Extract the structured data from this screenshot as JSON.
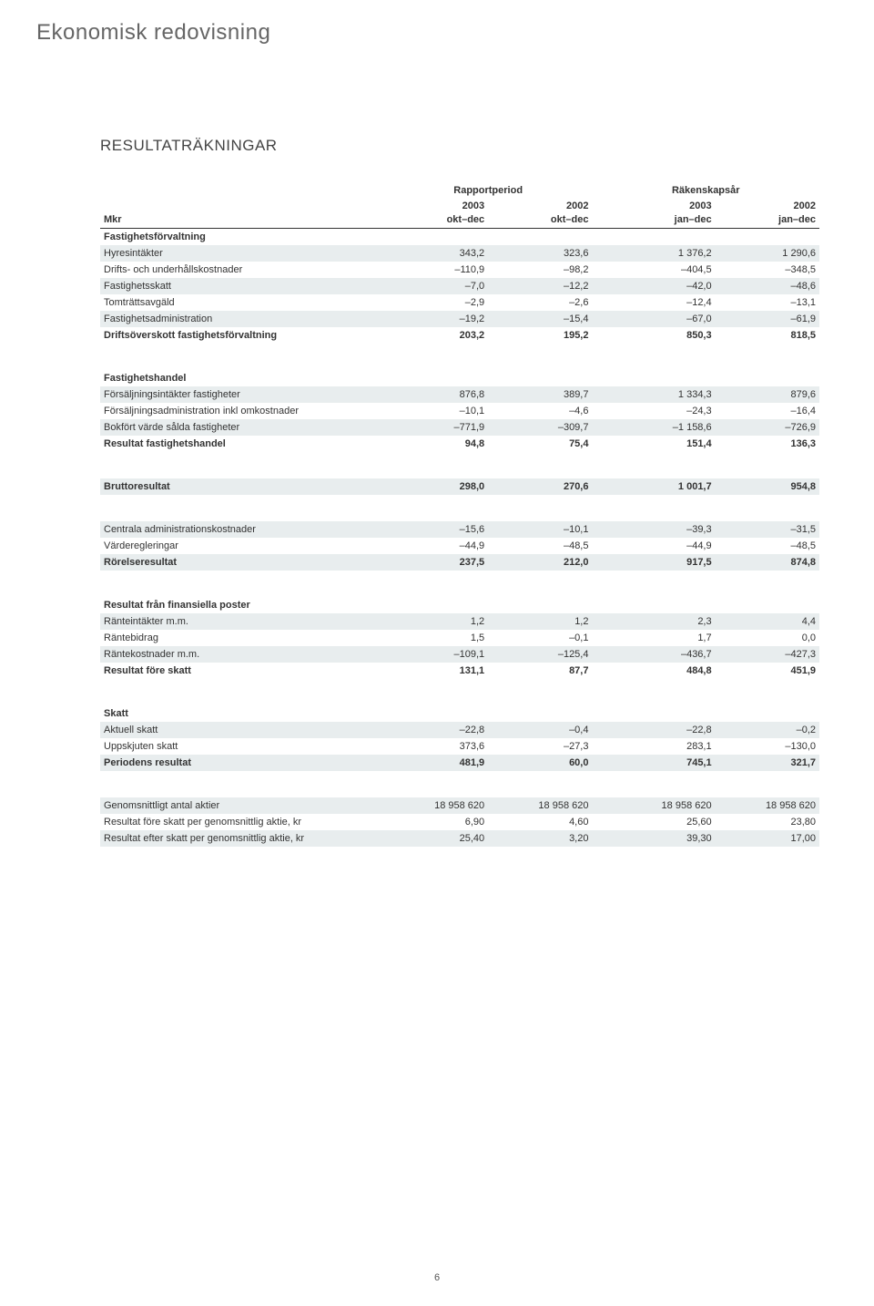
{
  "page_title": "Ekonomisk redovisning",
  "table_title": "RESULTATRÄKNINGAR",
  "page_number": "6",
  "colors": {
    "background": "#ffffff",
    "shade": "#e8edee",
    "text": "#333333",
    "title_gray": "#666666",
    "rule": "#333333"
  },
  "fonts": {
    "page_title_size": 24,
    "table_title_size": 17,
    "body_size": 11
  },
  "header": {
    "group1": "Rapportperiod",
    "group2": "Räkenskapsår",
    "y2003": "2003",
    "y2002": "2002",
    "mkr": "Mkr",
    "okt_dec": "okt–dec",
    "jan_dec": "jan–dec"
  },
  "rows": [
    {
      "type": "bold",
      "label": "Fastighetsförvaltning",
      "c": [
        "",
        "",
        "",
        ""
      ]
    },
    {
      "type": "shade",
      "label": "Hyresintäkter",
      "c": [
        "343,2",
        "323,6",
        "1 376,2",
        "1 290,6"
      ]
    },
    {
      "type": "plain",
      "label": "Drifts- och underhållskostnader",
      "c": [
        "–110,9",
        "–98,2",
        "–404,5",
        "–348,5"
      ]
    },
    {
      "type": "shade",
      "label": "Fastighetsskatt",
      "c": [
        "–7,0",
        "–12,2",
        "–42,0",
        "–48,6"
      ]
    },
    {
      "type": "plain",
      "label": "Tomträttsavgäld",
      "c": [
        "–2,9",
        "–2,6",
        "–12,4",
        "–13,1"
      ]
    },
    {
      "type": "shade",
      "label": "Fastighetsadministration",
      "c": [
        "–19,2",
        "–15,4",
        "–67,0",
        "–61,9"
      ]
    },
    {
      "type": "bold",
      "label": "Driftsöverskott fastighetsförvaltning",
      "c": [
        "203,2",
        "195,2",
        "850,3",
        "818,5"
      ]
    },
    {
      "type": "gap"
    },
    {
      "type": "bold",
      "label": "Fastighetshandel",
      "c": [
        "",
        "",
        "",
        ""
      ]
    },
    {
      "type": "shade",
      "label": "Försäljningsintäkter fastigheter",
      "c": [
        "876,8",
        "389,7",
        "1 334,3",
        "879,6"
      ]
    },
    {
      "type": "plain",
      "label": "Försäljningsadministration inkl omkostnader",
      "c": [
        "–10,1",
        "–4,6",
        "–24,3",
        "–16,4"
      ]
    },
    {
      "type": "shade",
      "label": "Bokfört värde sålda fastigheter",
      "c": [
        "–771,9",
        "–309,7",
        "–1 158,6",
        "–726,9"
      ]
    },
    {
      "type": "bold",
      "label": "Resultat fastighetshandel",
      "c": [
        "94,8",
        "75,4",
        "151,4",
        "136,3"
      ]
    },
    {
      "type": "gap"
    },
    {
      "type": "bold shade",
      "label": "Bruttoresultat",
      "c": [
        "298,0",
        "270,6",
        "1 001,7",
        "954,8"
      ]
    },
    {
      "type": "gap"
    },
    {
      "type": "shade",
      "label": "Centrala administrationskostnader",
      "c": [
        "–15,6",
        "–10,1",
        "–39,3",
        "–31,5"
      ]
    },
    {
      "type": "plain",
      "label": "Värderegleringar",
      "c": [
        "–44,9",
        "–48,5",
        "–44,9",
        "–48,5"
      ]
    },
    {
      "type": "bold shade",
      "label": "Rörelseresultat",
      "c": [
        "237,5",
        "212,0",
        "917,5",
        "874,8"
      ]
    },
    {
      "type": "gap"
    },
    {
      "type": "bold",
      "label": "Resultat från finansiella poster",
      "c": [
        "",
        "",
        "",
        ""
      ]
    },
    {
      "type": "shade",
      "label": "Ränteintäkter m.m.",
      "c": [
        "1,2",
        "1,2",
        "2,3",
        "4,4"
      ]
    },
    {
      "type": "plain",
      "label": "Räntebidrag",
      "c": [
        "1,5",
        "–0,1",
        "1,7",
        "0,0"
      ]
    },
    {
      "type": "shade",
      "label": "Räntekostnader m.m.",
      "c": [
        "–109,1",
        "–125,4",
        "–436,7",
        "–427,3"
      ]
    },
    {
      "type": "bold",
      "label": "Resultat före skatt",
      "c": [
        "131,1",
        "87,7",
        "484,8",
        "451,9"
      ]
    },
    {
      "type": "gap"
    },
    {
      "type": "bold",
      "label": "Skatt",
      "c": [
        "",
        "",
        "",
        ""
      ]
    },
    {
      "type": "shade",
      "label": "Aktuell skatt",
      "c": [
        "–22,8",
        "–0,4",
        "–22,8",
        "–0,2"
      ]
    },
    {
      "type": "plain",
      "label": "Uppskjuten skatt",
      "c": [
        "373,6",
        "–27,3",
        "283,1",
        "–130,0"
      ]
    },
    {
      "type": "bold shade",
      "label": "Periodens resultat",
      "c": [
        "481,9",
        "60,0",
        "745,1",
        "321,7"
      ]
    },
    {
      "type": "gap"
    },
    {
      "type": "shade",
      "label": "Genomsnittligt antal aktier",
      "c": [
        "18 958 620",
        "18 958 620",
        "18 958 620",
        "18 958 620"
      ]
    },
    {
      "type": "plain",
      "label": "Resultat före skatt per genomsnittlig aktie, kr",
      "c": [
        "6,90",
        "4,60",
        "25,60",
        "23,80"
      ]
    },
    {
      "type": "shade",
      "label": "Resultat efter skatt per genomsnittlig aktie, kr",
      "c": [
        "25,40",
        "3,20",
        "39,30",
        "17,00"
      ]
    }
  ]
}
